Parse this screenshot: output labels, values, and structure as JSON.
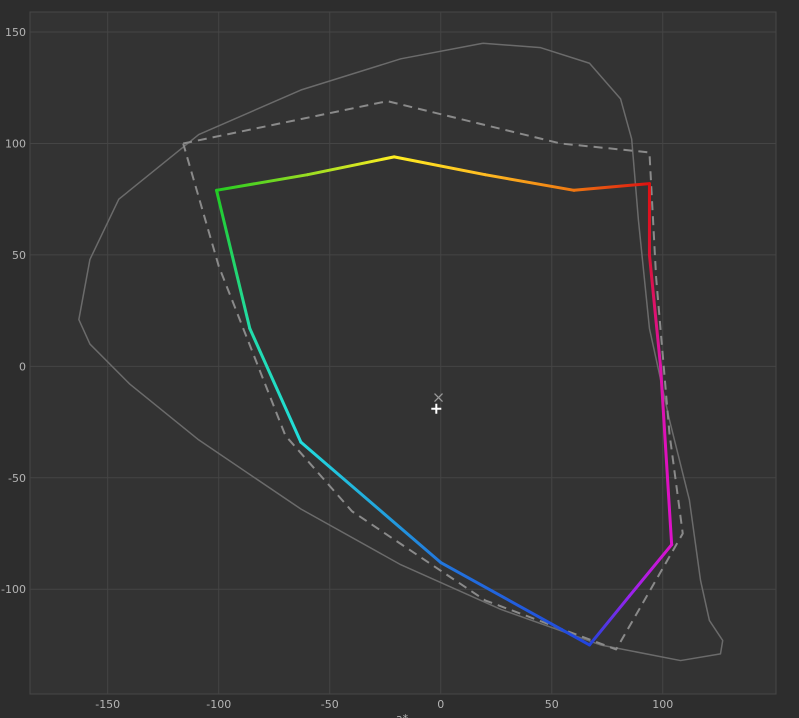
{
  "chart_data": {
    "type": "gamut",
    "x_label": "a*",
    "xlim": [
      -185,
      151
    ],
    "ylim": [
      -147,
      159
    ],
    "xticks": [
      -150,
      -100,
      -50,
      0,
      50,
      100
    ],
    "yticks": [
      -100,
      -50,
      0,
      50,
      100,
      150
    ],
    "grid": true,
    "series": [
      {
        "color": "#6b6b6b",
        "dashed": false,
        "x": [
          19,
          -18,
          -63,
          -109,
          -145,
          -158,
          -163,
          -158,
          -140,
          -109,
          -63,
          -18,
          27,
          72,
          108,
          126,
          127,
          121,
          117,
          112,
          103,
          94,
          89,
          86,
          81,
          67,
          45,
          19
        ],
        "y": [
          145,
          138,
          124,
          104,
          75,
          48,
          21,
          10,
          -8,
          -33,
          -64,
          -89,
          -109,
          -125,
          -132,
          -129,
          -123,
          -114,
          -96,
          -60,
          -24,
          17,
          66,
          102,
          120,
          136,
          143,
          145
        ]
      },
      {
        "color": "#8a8a8a",
        "dashed": true,
        "x": [
          -116,
          -24,
          54,
          94,
          97,
          103,
          109,
          79,
          20,
          -40,
          -70,
          -100,
          -116
        ],
        "y": [
          100,
          119,
          100,
          96,
          40,
          -30,
          -75,
          -127,
          -105,
          -65,
          -31,
          45,
          100
        ]
      },
      {
        "dashed": false,
        "x": [
          -101,
          -60,
          -21,
          20,
          60,
          94,
          94,
          99,
          104,
          85,
          67,
          0,
          -63,
          -86,
          -101
        ],
        "y": [
          79,
          86,
          94,
          86,
          79,
          82,
          50,
          0,
          -80,
          -103,
          -125,
          -88,
          -34,
          17,
          79
        ],
        "colors": [
          "#22cc22",
          "#99dd22",
          "#ffee22",
          "#ffbb22",
          "#ee7711",
          "#dd1111",
          "#dd1133",
          "#dd11aa",
          "#dd11cc",
          "#9922ee",
          "#2244dd",
          "#2277dd",
          "#22dddd",
          "#22ddaa",
          "#22cc22"
        ]
      }
    ],
    "markers": [
      {
        "x": -1,
        "y": -14,
        "shape": "cross",
        "color": "#9a9a9a"
      },
      {
        "x": -2,
        "y": -19,
        "shape": "plus",
        "color": "#ffffff"
      }
    ]
  }
}
